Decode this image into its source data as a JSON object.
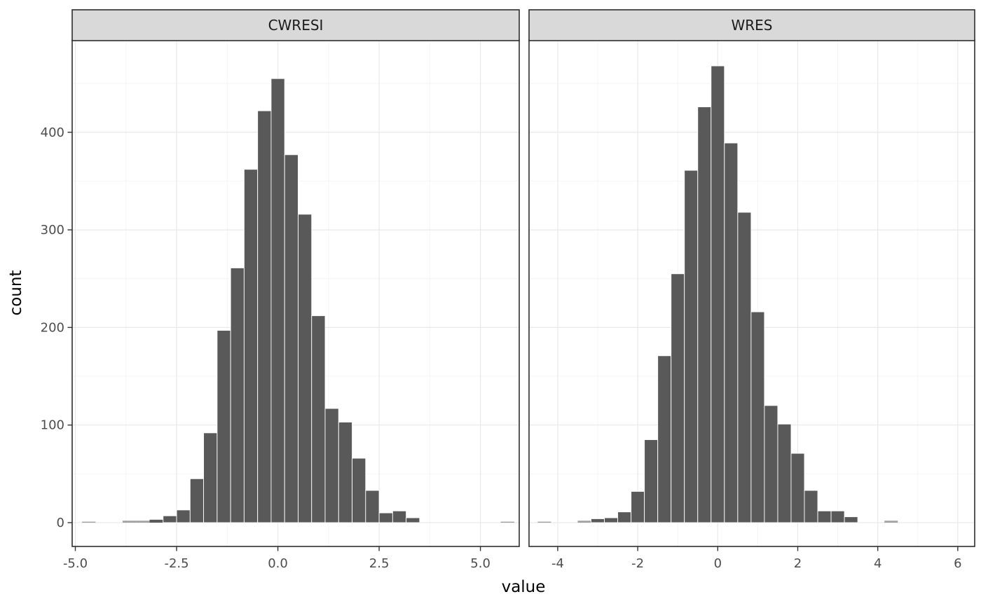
{
  "figure": {
    "background": "#ffffff",
    "panel_background": "#ffffff",
    "panel_border": "#2e2e2e",
    "strip_fill": "#d9d9d9",
    "strip_border": "#2e2e2e",
    "strip_text_color": "#1a1a1a",
    "bar_fill": "#595959",
    "bar_stroke": "#ffffff",
    "grid_major": "#e9e9e9",
    "grid_minor": "#f4f4f4",
    "tick_color": "#333333",
    "tick_label_color": "#4d4d4d",
    "axis_title_color": "#000000"
  },
  "chart_data": {
    "type": "bar",
    "subtype": "faceted-histogram",
    "xlabel": "value",
    "ylabel": "count",
    "binwidth": 0.3333,
    "grid": "on",
    "y_ticks": [
      0,
      100,
      200,
      300,
      400
    ],
    "y_tick_labels": [
      "0",
      "100",
      "200",
      "300",
      "400"
    ],
    "y_minor": [
      50,
      150,
      250,
      350,
      450
    ],
    "ylim": [
      -24.4,
      494.6
    ],
    "facets": [
      {
        "label": "CWRESI",
        "xlim": [
          -5.078,
          5.958
        ],
        "x_ticks": [
          -5.0,
          -2.5,
          0.0,
          2.5,
          5.0
        ],
        "x_tick_labels": [
          "-5.0",
          "-2.5",
          "0.0",
          "2.5",
          "5.0"
        ],
        "x_minor": [
          -3.75,
          -1.25,
          1.25,
          3.75
        ],
        "bins": [
          {
            "center": -4.667,
            "count": 1
          },
          {
            "center": -3.667,
            "count": 2
          },
          {
            "center": -3.333,
            "count": 2
          },
          {
            "center": -3.0,
            "count": 3
          },
          {
            "center": -2.667,
            "count": 7
          },
          {
            "center": -2.333,
            "count": 13
          },
          {
            "center": -2.0,
            "count": 45
          },
          {
            "center": -1.667,
            "count": 92
          },
          {
            "center": -1.333,
            "count": 197
          },
          {
            "center": -1.0,
            "count": 261
          },
          {
            "center": -0.667,
            "count": 362
          },
          {
            "center": -0.333,
            "count": 422
          },
          {
            "center": 0.0,
            "count": 455
          },
          {
            "center": 0.333,
            "count": 377
          },
          {
            "center": 0.667,
            "count": 316
          },
          {
            "center": 1.0,
            "count": 212
          },
          {
            "center": 1.333,
            "count": 117
          },
          {
            "center": 1.667,
            "count": 103
          },
          {
            "center": 2.0,
            "count": 66
          },
          {
            "center": 2.333,
            "count": 33
          },
          {
            "center": 2.667,
            "count": 10
          },
          {
            "center": 3.0,
            "count": 12
          },
          {
            "center": 3.333,
            "count": 5
          },
          {
            "center": 5.667,
            "count": 1
          }
        ]
      },
      {
        "label": "WRES",
        "xlim": [
          -4.717,
          6.423
        ],
        "x_ticks": [
          -4,
          -2,
          0,
          2,
          4,
          6
        ],
        "x_tick_labels": [
          "-4",
          "-2",
          "0",
          "2",
          "4",
          "6"
        ],
        "x_minor": [
          -3,
          -1,
          1,
          3,
          5
        ],
        "bins": [
          {
            "center": -4.333,
            "count": 1
          },
          {
            "center": -3.333,
            "count": 2
          },
          {
            "center": -3.0,
            "count": 4
          },
          {
            "center": -2.667,
            "count": 5
          },
          {
            "center": -2.333,
            "count": 11
          },
          {
            "center": -2.0,
            "count": 32
          },
          {
            "center": -1.667,
            "count": 85
          },
          {
            "center": -1.333,
            "count": 171
          },
          {
            "center": -1.0,
            "count": 255
          },
          {
            "center": -0.667,
            "count": 361
          },
          {
            "center": -0.333,
            "count": 426
          },
          {
            "center": 0.0,
            "count": 468
          },
          {
            "center": 0.333,
            "count": 389
          },
          {
            "center": 0.667,
            "count": 318
          },
          {
            "center": 1.0,
            "count": 216
          },
          {
            "center": 1.333,
            "count": 120
          },
          {
            "center": 1.667,
            "count": 101
          },
          {
            "center": 2.0,
            "count": 71
          },
          {
            "center": 2.333,
            "count": 33
          },
          {
            "center": 2.667,
            "count": 12
          },
          {
            "center": 3.0,
            "count": 12
          },
          {
            "center": 3.333,
            "count": 6
          },
          {
            "center": 4.333,
            "count": 2
          }
        ]
      }
    ]
  }
}
